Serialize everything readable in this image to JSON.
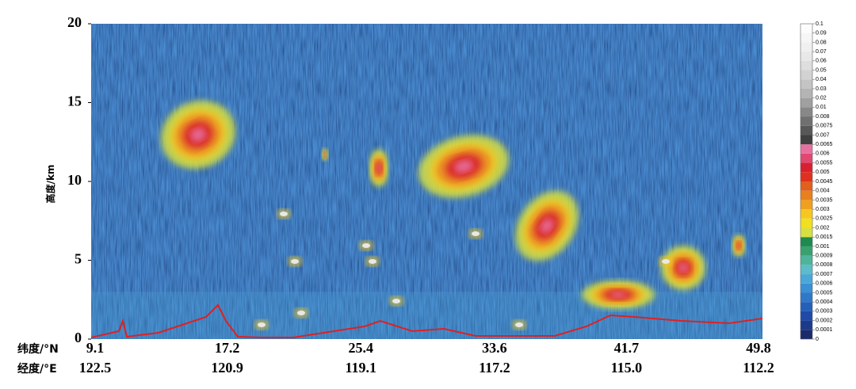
{
  "chart_data": {
    "type": "heatmap",
    "ylabel": "高度/km",
    "ylim": [
      0,
      20
    ],
    "yticks": [
      0,
      5,
      10,
      15,
      20
    ],
    "xlim": [
      9.1,
      49.8
    ],
    "x_rows": [
      {
        "label": "纬度/°N",
        "ticks": [
          9.1,
          17.2,
          25.4,
          33.6,
          41.7,
          49.8
        ]
      },
      {
        "label": "经度/°E",
        "ticks": [
          122.5,
          120.9,
          119.1,
          117.2,
          {
            "value": 115,
            "label": "115.0"
          },
          112.2
        ]
      }
    ],
    "colorbar": {
      "levels": [
        0,
        0.0001,
        0.0002,
        0.0003,
        0.0004,
        0.0005,
        0.0006,
        0.0007,
        0.0008,
        0.0009,
        0.001,
        0.0015,
        0.002,
        0.0025,
        0.003,
        0.0035,
        0.004,
        0.0045,
        0.005,
        0.0055,
        0.006,
        0.0065,
        0.007,
        0.0075,
        0.008,
        0.01,
        0.02,
        0.03,
        0.04,
        0.05,
        0.06,
        0.07,
        0.08,
        0.09,
        0.1
      ],
      "colors": [
        "#1a2a6c",
        "#1c3a8c",
        "#1f4aa8",
        "#2460b8",
        "#2f78c8",
        "#3a90d2",
        "#4aa8d8",
        "#5cbcc8",
        "#4fb49a",
        "#3aa070",
        "#1e8a50",
        "#d8e040",
        "#f0e020",
        "#f5c820",
        "#f0a020",
        "#e88020",
        "#e06020",
        "#e03020",
        "#d82030",
        "#e04870",
        "#e870a0",
        "#404040",
        "#585858",
        "#707070",
        "#888888",
        "#a0a0a0",
        "#b4b4b4",
        "#c4c4c4",
        "#d2d2d2",
        "#dedede",
        "#e8e8e8",
        "#f0f0f0",
        "#f6f6f6",
        "#fcfcfc"
      ]
    }
  }
}
